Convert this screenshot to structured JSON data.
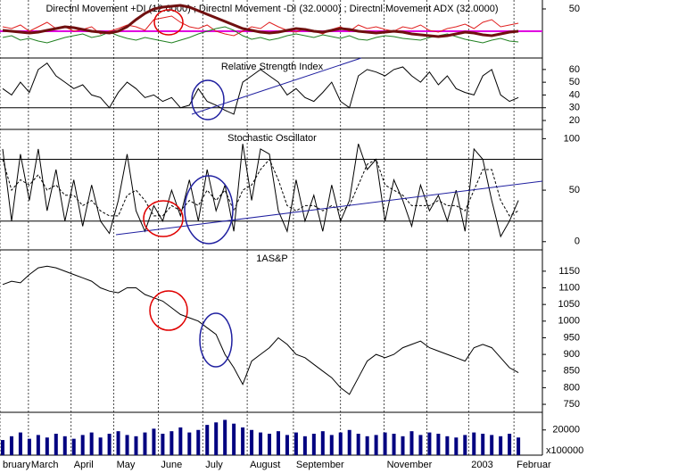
{
  "chart_data": [
    {
      "type": "line",
      "title": "Directnl Movement +DI (12.0000) ; Directnl Movement -DI (32.0000) ; Directnl Movement ADX (32.0000)",
      "x": [
        0,
        10,
        20,
        30,
        40,
        50,
        60,
        70,
        80,
        90,
        100,
        110,
        120,
        130,
        140,
        150,
        160,
        170,
        180,
        190,
        200,
        210,
        220,
        230,
        240,
        250,
        260,
        270,
        280,
        290,
        300,
        310,
        320,
        330,
        340,
        350,
        360,
        370,
        380,
        390,
        400,
        410,
        420,
        430,
        440,
        450,
        460,
        470,
        480,
        490,
        500,
        510,
        520,
        530,
        540,
        550,
        560,
        570,
        580
      ],
      "xlim": [
        -3,
        607
      ],
      "ylim": [
        -5,
        60
      ],
      "yticks": [
        50
      ],
      "hlines": [
        25
      ],
      "hline_color": "#e000e0",
      "series": [
        {
          "color": "#e02020",
          "values": [
            30,
            28,
            32,
            25,
            30,
            35,
            28,
            30,
            25,
            27,
            30,
            22,
            25,
            28,
            32,
            30,
            26,
            38,
            40,
            42,
            35,
            30,
            28,
            32,
            25,
            22,
            20,
            25,
            30,
            28,
            35,
            30,
            26,
            24,
            28,
            25,
            22,
            27,
            30,
            25,
            32,
            28,
            30,
            27,
            25,
            30,
            28,
            32,
            26,
            24,
            28,
            30,
            33,
            28,
            35,
            38,
            30,
            32,
            34
          ]
        },
        {
          "color": "#208020",
          "values": [
            18,
            20,
            15,
            17,
            14,
            12,
            15,
            18,
            20,
            22,
            18,
            20,
            24,
            20,
            17,
            15,
            18,
            16,
            14,
            12,
            15,
            18,
            22,
            25,
            28,
            30,
            26,
            20,
            16,
            18,
            15,
            17,
            20,
            22,
            20,
            18,
            21,
            19,
            17,
            20,
            16,
            15,
            18,
            20,
            19,
            17,
            16,
            15,
            18,
            20,
            22,
            19,
            16,
            14,
            12,
            15,
            17,
            14,
            13
          ]
        },
        {
          "color": "#701010",
          "width": 3,
          "values": [
            26,
            25,
            24,
            23,
            24,
            26,
            28,
            30,
            29,
            27,
            25,
            24,
            23,
            25,
            30,
            38,
            45,
            50,
            52,
            53,
            54,
            52,
            48,
            44,
            40,
            36,
            32,
            28,
            26,
            24,
            23,
            24,
            26,
            28,
            27,
            25,
            24,
            26,
            28,
            27,
            25,
            24,
            23,
            24,
            25,
            24,
            22,
            21,
            20,
            19,
            20,
            22,
            24,
            23,
            21,
            20,
            22,
            24,
            25
          ]
        }
      ]
    },
    {
      "type": "line",
      "title": "Relative Strength Index",
      "x": [
        0,
        10,
        20,
        30,
        40,
        50,
        60,
        70,
        80,
        90,
        100,
        110,
        120,
        130,
        140,
        150,
        160,
        170,
        180,
        190,
        200,
        210,
        220,
        230,
        240,
        250,
        260,
        270,
        280,
        290,
        300,
        310,
        320,
        330,
        340,
        350,
        360,
        370,
        380,
        390,
        400,
        410,
        420,
        430,
        440,
        450,
        460,
        470,
        480,
        490,
        500,
        510,
        520,
        530,
        540,
        550,
        560,
        570,
        580
      ],
      "xlim": [
        -3,
        607
      ],
      "ylim": [
        13,
        69
      ],
      "yticks": [
        60,
        50,
        40,
        30,
        20
      ],
      "hlines": [
        30
      ],
      "hline_color": "#000000",
      "series": [
        {
          "color": "#000000",
          "values": [
            45,
            40,
            50,
            42,
            60,
            65,
            55,
            50,
            45,
            48,
            40,
            38,
            30,
            42,
            50,
            45,
            38,
            40,
            35,
            38,
            30,
            32,
            45,
            35,
            32,
            28,
            25,
            50,
            55,
            60,
            55,
            50,
            40,
            45,
            38,
            35,
            42,
            50,
            35,
            30,
            55,
            60,
            58,
            55,
            60,
            62,
            55,
            50,
            58,
            48,
            55,
            45,
            42,
            40,
            55,
            60,
            40,
            35,
            38
          ]
        }
      ]
    },
    {
      "type": "line",
      "title": "Stochastic Oscillator",
      "x": [
        0,
        10,
        20,
        30,
        40,
        50,
        60,
        70,
        80,
        90,
        100,
        110,
        120,
        130,
        140,
        150,
        160,
        170,
        180,
        190,
        200,
        210,
        220,
        230,
        240,
        250,
        260,
        270,
        280,
        290,
        300,
        310,
        320,
        330,
        340,
        350,
        360,
        370,
        380,
        390,
        400,
        410,
        420,
        430,
        440,
        450,
        460,
        470,
        480,
        490,
        500,
        510,
        520,
        530,
        540,
        550,
        560,
        570,
        580
      ],
      "xlim": [
        -3,
        607
      ],
      "ylim": [
        -8,
        109
      ],
      "yticks": [
        100,
        50,
        0
      ],
      "hlines": [
        80,
        20
      ],
      "hline_color": "#000000",
      "series": [
        {
          "color": "#000000",
          "values": [
            90,
            20,
            85,
            40,
            90,
            30,
            70,
            20,
            60,
            15,
            55,
            20,
            8,
            40,
            85,
            30,
            10,
            35,
            20,
            50,
            25,
            60,
            20,
            70,
            30,
            55,
            10,
            95,
            40,
            90,
            85,
            30,
            10,
            60,
            20,
            45,
            10,
            55,
            20,
            40,
            95,
            70,
            80,
            20,
            60,
            40,
            15,
            55,
            30,
            45,
            20,
            50,
            10,
            90,
            80,
            40,
            5,
            20,
            40
          ]
        },
        {
          "color": "#000000",
          "dash": "3 2",
          "values": [
            80,
            50,
            60,
            55,
            65,
            50,
            55,
            45,
            45,
            35,
            40,
            30,
            25,
            25,
            45,
            50,
            40,
            25,
            25,
            35,
            30,
            40,
            35,
            50,
            40,
            50,
            30,
            50,
            55,
            70,
            80,
            60,
            35,
            30,
            35,
            35,
            30,
            35,
            30,
            35,
            55,
            75,
            80,
            55,
            50,
            45,
            35,
            35,
            35,
            40,
            35,
            35,
            30,
            50,
            70,
            70,
            40,
            25,
            30
          ]
        }
      ]
    },
    {
      "type": "line",
      "title": "1AS&P",
      "x": [
        0,
        10,
        20,
        30,
        40,
        50,
        60,
        70,
        80,
        90,
        100,
        110,
        120,
        130,
        140,
        150,
        160,
        170,
        180,
        190,
        200,
        210,
        220,
        230,
        240,
        250,
        260,
        270,
        280,
        290,
        300,
        310,
        320,
        330,
        340,
        350,
        360,
        370,
        380,
        390,
        400,
        410,
        420,
        430,
        440,
        450,
        460,
        470,
        480,
        490,
        500,
        510,
        520,
        530,
        540,
        550,
        560,
        570,
        580
      ],
      "xlim": [
        -3,
        607
      ],
      "ylim": [
        726,
        1214
      ],
      "yticks": [
        1150,
        1100,
        1050,
        1000,
        950,
        900,
        850,
        800,
        750
      ],
      "series": [
        {
          "color": "#000000",
          "values": [
            1110,
            1120,
            1115,
            1140,
            1160,
            1165,
            1160,
            1150,
            1140,
            1130,
            1120,
            1100,
            1090,
            1085,
            1100,
            1100,
            1080,
            1070,
            1060,
            1040,
            1020,
            1010,
            1000,
            980,
            960,
            900,
            860,
            810,
            880,
            900,
            920,
            950,
            930,
            900,
            890,
            870,
            850,
            830,
            800,
            780,
            830,
            880,
            900,
            890,
            900,
            920,
            930,
            940,
            920,
            910,
            900,
            890,
            880,
            920,
            930,
            920,
            890,
            860,
            845
          ]
        }
      ]
    },
    {
      "type": "bar",
      "ylabel": "x100000",
      "x": [
        0,
        10,
        20,
        30,
        40,
        50,
        60,
        70,
        80,
        90,
        100,
        110,
        120,
        130,
        140,
        150,
        160,
        170,
        180,
        190,
        200,
        210,
        220,
        230,
        240,
        250,
        260,
        270,
        280,
        290,
        300,
        310,
        320,
        330,
        340,
        350,
        360,
        370,
        380,
        390,
        400,
        410,
        420,
        430,
        440,
        450,
        460,
        470,
        480,
        490,
        500,
        510,
        520,
        530,
        540,
        550,
        560,
        570,
        580
      ],
      "xlim": [
        -3,
        607
      ],
      "ylim": [
        0,
        34000
      ],
      "yticks": [
        20000
      ],
      "color": "#000080",
      "values": [
        12000,
        15000,
        18000,
        13000,
        16000,
        14000,
        17000,
        15000,
        13000,
        16000,
        18000,
        14000,
        17000,
        19000,
        16000,
        15000,
        18000,
        21000,
        17000,
        19000,
        22000,
        18000,
        20000,
        24000,
        26000,
        28000,
        25000,
        22000,
        20000,
        18000,
        17000,
        19000,
        16000,
        18000,
        15000,
        17000,
        19000,
        16000,
        18000,
        20000,
        17000,
        15000,
        16000,
        18000,
        17000,
        15000,
        19000,
        16000,
        18000,
        17000,
        15000,
        14000,
        16000,
        18000,
        17000,
        16000,
        15000,
        17000,
        14000
      ],
      "xticks": [
        {
          "value": -3,
          "label": "bruary"
        },
        {
          "value": 29,
          "label": "March"
        },
        {
          "value": 77,
          "label": "April"
        },
        {
          "value": 125,
          "label": "May"
        },
        {
          "value": 175,
          "label": "June"
        },
        {
          "value": 225,
          "label": "July"
        },
        {
          "value": 275,
          "label": "August"
        },
        {
          "value": 327,
          "label": "September"
        },
        {
          "value": 380,
          "label": null
        },
        {
          "value": 429,
          "label": "November"
        },
        {
          "value": 477,
          "label": null
        },
        {
          "value": 524,
          "label": "2003"
        },
        {
          "value": 575,
          "label": "Februar"
        }
      ]
    }
  ]
}
